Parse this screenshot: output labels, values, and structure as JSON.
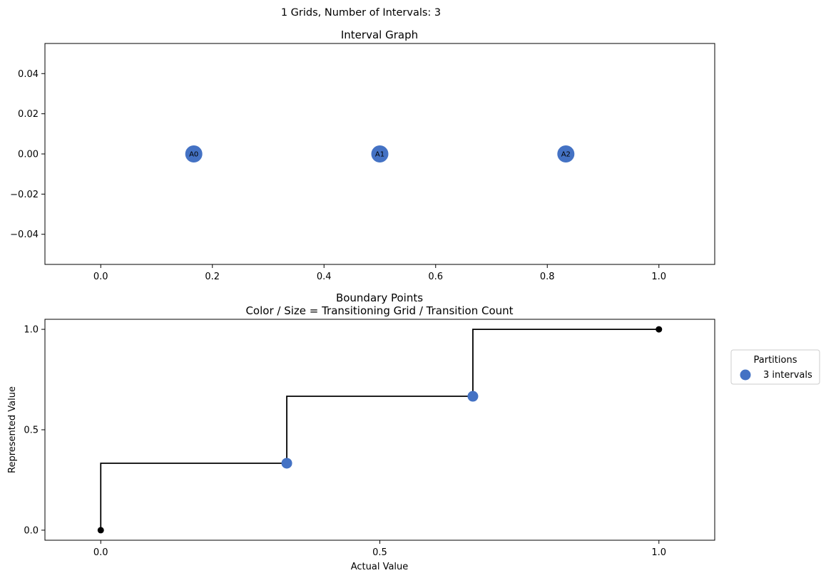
{
  "figure": {
    "suptitle": "1 Grids, Number of Intervals: 3"
  },
  "chart_data": [
    {
      "type": "scatter",
      "title": "Interval Graph",
      "xlabel": "",
      "ylabel": "",
      "xlim": [
        -0.1,
        1.1
      ],
      "ylim": [
        -0.055,
        0.055
      ],
      "xticks": [
        0.0,
        0.2,
        0.4,
        0.6,
        0.8,
        1.0
      ],
      "xtick_labels": [
        "0.0",
        "0.2",
        "0.4",
        "0.6",
        "0.8",
        "1.0"
      ],
      "yticks": [
        0.04,
        0.02,
        0.0,
        -0.02,
        -0.04
      ],
      "ytick_labels": [
        "0.04",
        "0.02",
        "0.00",
        "−0.02",
        "−0.04"
      ],
      "grid": false,
      "node_color": "#4472c4",
      "nodes": [
        {
          "label": "A0",
          "x": 0.1667,
          "y": 0.0
        },
        {
          "label": "A1",
          "x": 0.5,
          "y": 0.0
        },
        {
          "label": "A2",
          "x": 0.8333,
          "y": 0.0
        }
      ]
    },
    {
      "type": "line",
      "title": "Boundary Points",
      "subtitle": "Color / Size = Transitioning Grid / Transition Count",
      "xlabel": "Actual Value",
      "ylabel": "Represented Value",
      "xlim": [
        -0.1,
        1.1
      ],
      "ylim": [
        -0.05,
        1.05
      ],
      "xticks": [
        0.0,
        0.5,
        1.0
      ],
      "xtick_labels": [
        "0.0",
        "0.5",
        "1.0"
      ],
      "yticks": [
        0.0,
        0.5,
        1.0
      ],
      "ytick_labels": [
        "0.0",
        "0.5",
        "1.0"
      ],
      "grid": false,
      "step_line": {
        "color": "#000000",
        "points": [
          [
            0,
            0
          ],
          [
            0,
            0.3333
          ],
          [
            0.3333,
            0.3333
          ],
          [
            0.3333,
            0.6667
          ],
          [
            0.6667,
            0.6667
          ],
          [
            0.6667,
            1.0
          ],
          [
            1.0,
            1.0
          ]
        ]
      },
      "endpoints": [
        {
          "x": 0.0,
          "y": 0.0
        },
        {
          "x": 1.0,
          "y": 1.0
        }
      ],
      "endpoint_color": "#000000",
      "series": [
        {
          "name": "3 intervals",
          "color": "#4472c4",
          "points": [
            {
              "x": 0.3333,
              "y": 0.3333
            },
            {
              "x": 0.6667,
              "y": 0.6667
            }
          ]
        }
      ],
      "legend": {
        "title": "Partitions",
        "placement": "outside-right"
      }
    }
  ]
}
